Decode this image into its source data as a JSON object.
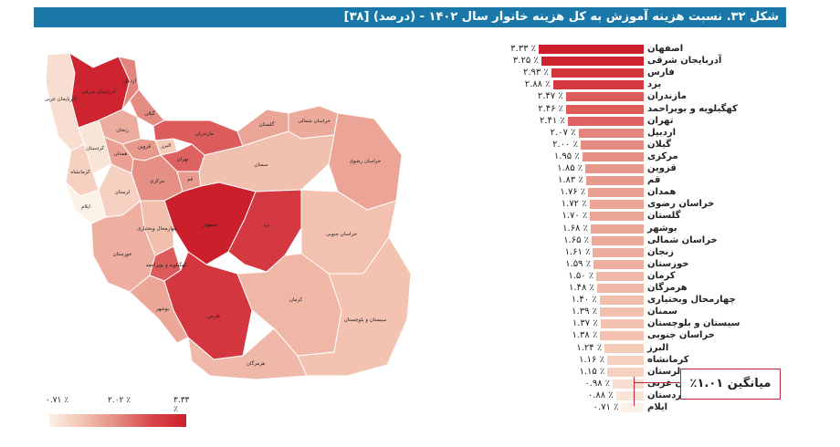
{
  "title": "شکل ۳۲. نسبت هزینه آموزش به کل هزینه خانوار سال ۱۴۰۲ - (درصد) [۳۸]",
  "legend": {
    "min": "۰.۷۱ ٪",
    "mid": "۲.۰۲ ٪",
    "max": "۳.۳۳ ٪"
  },
  "average_label": "میانگین ۱.۰۱٪",
  "colors": {
    "title_bg": "#1a78a8",
    "bar_high": "#cc1f2c",
    "bar_low": "#fbeee4",
    "average_box": "#c0263a"
  },
  "chart_data": {
    "type": "bar",
    "orientation": "horizontal",
    "title": "",
    "xlabel": "",
    "ylabel": "",
    "xlim": [
      0,
      3.33
    ],
    "categories": [
      "اصفهان",
      "آذربایجان شرقی",
      "فارس",
      "یزد",
      "مازندران",
      "کهگیلویه و بویراحمد",
      "تهران",
      "اردبیل",
      "گیلان",
      "مرکزی",
      "قزوین",
      "قم",
      "همدان",
      "خراسان رضوی",
      "گلستان",
      "بوشهر",
      "خراسان شمالی",
      "زنجان",
      "خوزستان",
      "کرمان",
      "هرمزگان",
      "چهارمحال وبختیاری",
      "سمنان",
      "سیستان و بلوچستان",
      "خراسان جنوبی",
      "البرز",
      "کرمانشاه",
      "لرستان",
      "آذربایجان غربی",
      "کردستان",
      "ایلام"
    ],
    "values": [
      3.33,
      3.25,
      2.93,
      2.88,
      2.47,
      2.46,
      2.41,
      2.07,
      2.0,
      1.95,
      1.85,
      1.83,
      1.76,
      1.72,
      1.7,
      1.68,
      1.65,
      1.61,
      1.59,
      1.5,
      1.48,
      1.4,
      1.39,
      1.37,
      1.38,
      1.24,
      1.16,
      1.15,
      0.98,
      0.88,
      0.71
    ],
    "value_labels": [
      "۳.۳۳ ٪",
      "۳.۲۵ ٪",
      "۲.۹۳ ٪",
      "۲.۸۸ ٪",
      "۲.۴۷ ٪",
      "۲.۴۶ ٪",
      "۲.۴۱ ٪",
      "۲.۰۷ ٪",
      "۲.۰۰ ٪",
      "۱.۹۵ ٪",
      "۱.۸۵ ٪",
      "۱.۸۳ ٪",
      "۱.۷۶ ٪",
      "۱.۷۲ ٪",
      "۱.۷۰ ٪",
      "۱.۶۸ ٪",
      "۱.۶۵ ٪",
      "۱.۶۱ ٪",
      "۱.۵۹ ٪",
      "۱.۵۰ ٪",
      "۱.۴۸ ٪",
      "۱.۴۰ ٪",
      "۱.۳۹ ٪",
      "۱.۳۷ ٪",
      "۱.۳۸ ٪",
      "۱.۲۴ ٪",
      "۱.۱۶ ٪",
      "۱.۱۵ ٪",
      "۰.۹۸ ٪",
      "۰.۸۸ ٪",
      "۰.۷۱ ٪"
    ],
    "average": 1.01
  },
  "map": {
    "regions": [
      {
        "name": "آذربایجان غربی",
        "value": 0.98
      },
      {
        "name": "آذربایجان شرقی",
        "value": 3.25
      },
      {
        "name": "اردبیل",
        "value": 2.07
      },
      {
        "name": "گیلان",
        "value": 2.0
      },
      {
        "name": "زنجان",
        "value": 1.61
      },
      {
        "name": "کردستان",
        "value": 0.88
      },
      {
        "name": "کرمانشاه",
        "value": 1.16
      },
      {
        "name": "ایلام",
        "value": 0.71
      },
      {
        "name": "لرستان",
        "value": 1.15
      },
      {
        "name": "همدان",
        "value": 1.76
      },
      {
        "name": "قزوین",
        "value": 1.85
      },
      {
        "name": "البرز",
        "value": 1.24
      },
      {
        "name": "تهران",
        "value": 2.41
      },
      {
        "name": "قم",
        "value": 1.83
      },
      {
        "name": "مرکزی",
        "value": 1.95
      },
      {
        "name": "مازندران",
        "value": 2.47
      },
      {
        "name": "گلستان",
        "value": 1.7
      },
      {
        "name": "خراسان شمالی",
        "value": 1.65
      },
      {
        "name": "خراسان رضوی",
        "value": 1.72
      },
      {
        "name": "سمنان",
        "value": 1.39
      },
      {
        "name": "اصفهان",
        "value": 3.33
      },
      {
        "name": "خوزستان",
        "value": 1.59
      },
      {
        "name": "کهگیلویه و بویراحمد",
        "value": 2.46
      },
      {
        "name": "چهارمحال وبختیاری",
        "value": 1.4
      },
      {
        "name": "بوشهر",
        "value": 1.68
      },
      {
        "name": "فارس",
        "value": 2.93
      },
      {
        "name": "یزد",
        "value": 2.88
      },
      {
        "name": "خراسان جنوبی",
        "value": 1.38
      },
      {
        "name": "کرمان",
        "value": 1.5
      },
      {
        "name": "هرمزگان",
        "value": 1.48
      },
      {
        "name": "سیستان و بلوچستان",
        "value": 1.37
      }
    ]
  }
}
